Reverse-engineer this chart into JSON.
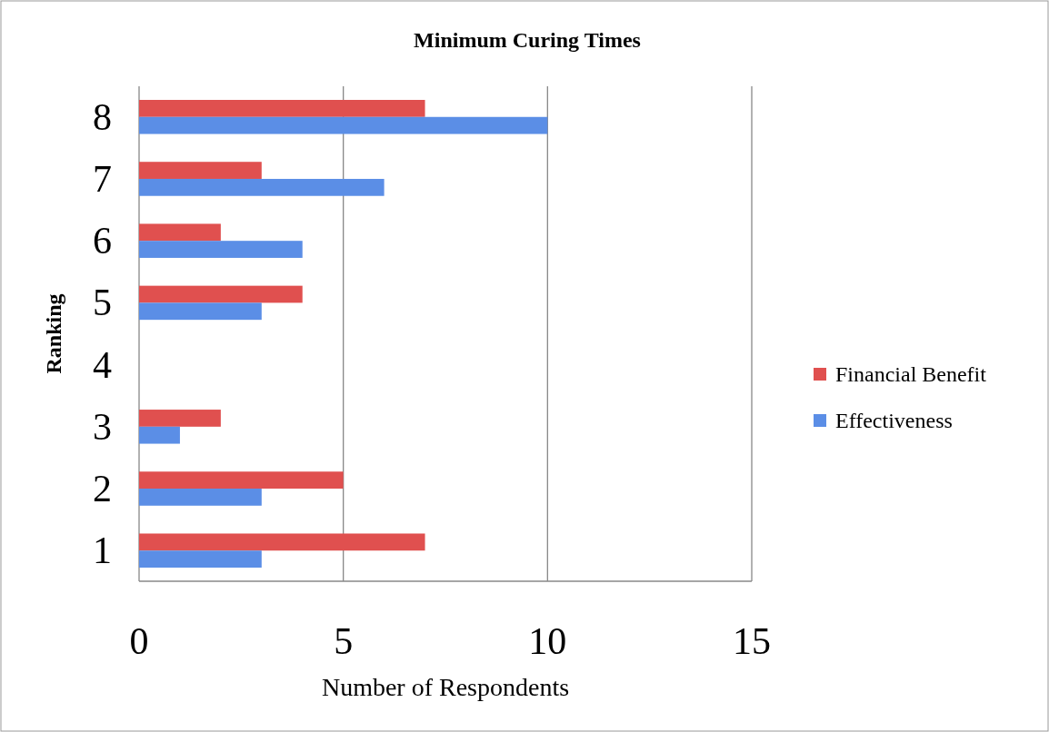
{
  "chart_data": {
    "type": "bar",
    "orientation": "horizontal",
    "title": "Minimum Curing Times",
    "xlabel": "Number of Respondents",
    "ylabel": "Ranking",
    "categories": [
      "8",
      "7",
      "6",
      "5",
      "4",
      "3",
      "2",
      "1"
    ],
    "series": [
      {
        "name": "Financial Benefit",
        "color": "#e0504f",
        "values": [
          7,
          3,
          2,
          4,
          null,
          2,
          5,
          7
        ]
      },
      {
        "name": "Effectiveness",
        "color": "#5b8ee6",
        "values": [
          10,
          6,
          4,
          3,
          null,
          1,
          3,
          3
        ]
      }
    ],
    "xlim": [
      0,
      15
    ],
    "xticks": [
      0,
      5,
      10,
      15
    ],
    "grid": "x",
    "legend": "right"
  }
}
